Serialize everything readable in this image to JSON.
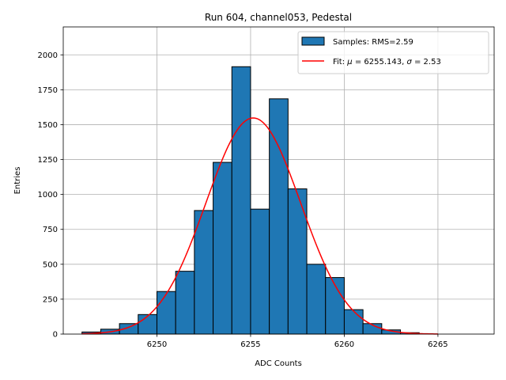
{
  "chart_data": {
    "type": "bar",
    "title": "Run 604, channel053, Pedestal",
    "xlabel": "ADC Counts",
    "ylabel": "Entries",
    "xlim": [
      6245.0,
      6268.0
    ],
    "ylim": [
      0,
      2200
    ],
    "xticks": [
      6250,
      6255,
      6260,
      6265
    ],
    "yticks": [
      0,
      250,
      500,
      750,
      1000,
      1250,
      1500,
      1750,
      2000
    ],
    "grid": true,
    "legend_position": "top-right",
    "histogram": {
      "name": "Samples: RMS=2.59",
      "color": "#1f77b4",
      "edge_color": "#000000",
      "bins": [
        {
          "left": 6246,
          "right": 6247,
          "count": 15
        },
        {
          "left": 6247,
          "right": 6248,
          "count": 35
        },
        {
          "left": 6248,
          "right": 6249,
          "count": 75
        },
        {
          "left": 6249,
          "right": 6250,
          "count": 140
        },
        {
          "left": 6250,
          "right": 6251,
          "count": 305
        },
        {
          "left": 6251,
          "right": 6252,
          "count": 450
        },
        {
          "left": 6252,
          "right": 6253,
          "count": 885
        },
        {
          "left": 6253,
          "right": 6254,
          "count": 1230
        },
        {
          "left": 6254,
          "right": 6255,
          "count": 1915
        },
        {
          "left": 6255,
          "right": 6256,
          "count": 895
        },
        {
          "left": 6256,
          "right": 6257,
          "count": 1685
        },
        {
          "left": 6257,
          "right": 6258,
          "count": 1040
        },
        {
          "left": 6258,
          "right": 6259,
          "count": 500
        },
        {
          "left": 6259,
          "right": 6260,
          "count": 405
        },
        {
          "left": 6260,
          "right": 6261,
          "count": 175
        },
        {
          "left": 6261,
          "right": 6262,
          "count": 75
        },
        {
          "left": 6262,
          "right": 6263,
          "count": 30
        },
        {
          "left": 6263,
          "right": 6264,
          "count": 10
        }
      ]
    },
    "fit": {
      "name": "Fit: μ = 6255.143, σ = 2.53",
      "legend_prefix": "Fit: ",
      "mu_symbol": "μ",
      "mu_value": " = 6255.143, ",
      "sigma_symbol": "σ",
      "sigma_value": " = 2.53",
      "color": "#ff0000",
      "mu": 6255.143,
      "sigma": 2.53,
      "amplitude": 1548,
      "x_range": [
        6246,
        6265
      ]
    }
  }
}
